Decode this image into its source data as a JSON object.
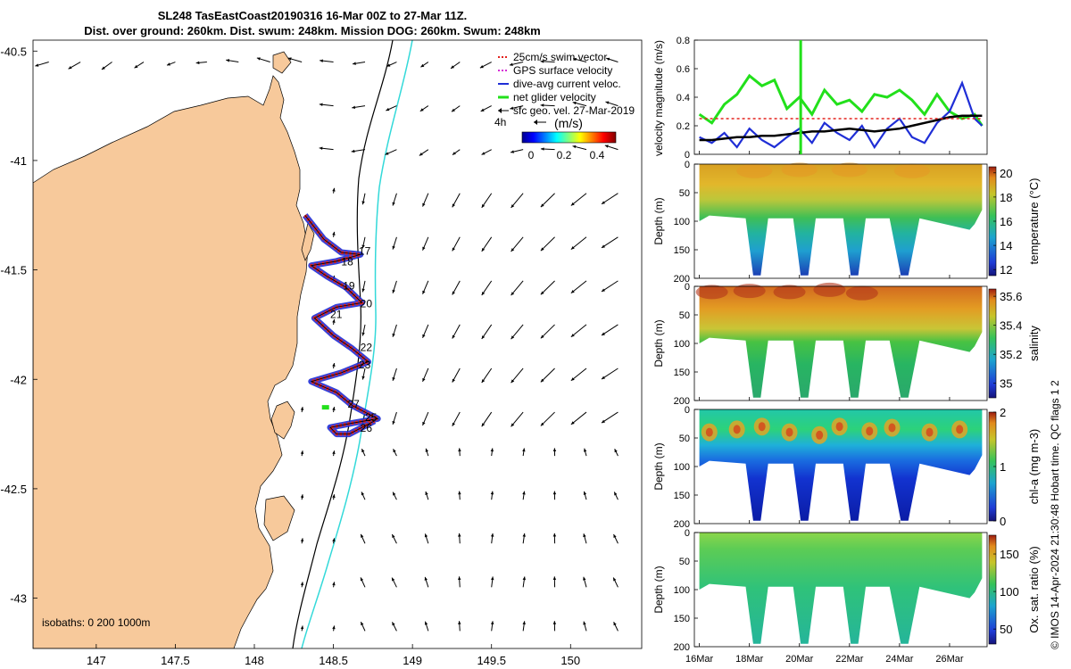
{
  "header": {
    "line1": "SL248 TasEastCoast20190316 16-Mar 00Z to 27-Mar 11Z.",
    "line2": "Dist. over ground: 260km. Dist. swum: 248km. Mission DOG: 260km. Swum: 248km"
  },
  "credit": "© IMOS 14-Apr-2024 21:30:48 Hobart time. QC flags 1  2",
  "colors": {
    "land": "#f7c99b",
    "track": "#e3231e",
    "dive_current": "#1f2ed6",
    "net_velocity": "#22e01b",
    "gps": "#d62cd6",
    "contour_200": "#000000",
    "contour_1000": "#33d9d9",
    "arrow": "#000000"
  },
  "chart_data": [
    {
      "id": "map",
      "type": "scatter",
      "xlabel": "",
      "ylabel": "",
      "xlim": [
        146.6,
        150.45
      ],
      "ylim": [
        -43.23,
        -40.45
      ],
      "xticks": [
        "147",
        "147.5",
        "148",
        "148.5",
        "149",
        "149.5",
        "150"
      ],
      "yticks": [
        "-40.5",
        "-41",
        "-41.5",
        "-42",
        "-42.5",
        "-43"
      ],
      "legend": {
        "position": "top-right",
        "entries": [
          "25cm/s swim vector",
          "GPS surface velocity",
          "dive-avg current veloc.",
          "net glider velocity",
          "sfc geo. vel. 27-Mar-2019"
        ]
      },
      "colorbar": {
        "label": "(m/s)",
        "scale_arrow_label": "4h",
        "ticks": [
          "0",
          "0.2",
          "0.4"
        ],
        "range": [
          0,
          0.5
        ]
      },
      "isobath_label": "isobaths: 0   200 1000m",
      "track_lon": [
        148.32,
        148.44,
        148.55,
        148.67,
        148.52,
        148.36,
        148.46,
        148.58,
        148.68,
        148.52,
        148.38,
        148.5,
        148.62,
        148.72,
        148.55,
        148.36,
        148.52,
        148.62,
        148.78,
        148.62,
        148.48,
        148.52,
        148.6,
        148.76
      ],
      "track_lat": [
        -41.25,
        -41.36,
        -41.42,
        -41.43,
        -41.46,
        -41.48,
        -41.53,
        -41.58,
        -41.65,
        -41.67,
        -41.72,
        -41.8,
        -41.86,
        -41.92,
        -41.97,
        -42.01,
        -42.06,
        -42.12,
        -42.18,
        -42.2,
        -42.22,
        -42.25,
        -42.25,
        -42.19
      ],
      "day_labels": [
        {
          "text": "17",
          "lon": 148.66,
          "lat": -41.43
        },
        {
          "text": "18",
          "lon": 148.55,
          "lat": -41.48
        },
        {
          "text": "19",
          "lon": 148.56,
          "lat": -41.59
        },
        {
          "text": "20",
          "lon": 148.67,
          "lat": -41.67
        },
        {
          "text": "21",
          "lon": 148.48,
          "lat": -41.72
        },
        {
          "text": "22",
          "lon": 148.67,
          "lat": -41.87
        },
        {
          "text": "23",
          "lon": 148.66,
          "lat": -41.95
        },
        {
          "text": "27",
          "lon": 148.59,
          "lat": -42.13
        },
        {
          "text": "25",
          "lon": 148.7,
          "lat": -42.19
        },
        {
          "text": "26",
          "lon": 148.67,
          "lat": -42.24
        }
      ]
    },
    {
      "id": "velocity",
      "type": "line",
      "ylabel": "velocity magnitude (m/s)",
      "xlim": [
        15.8,
        27.5
      ],
      "ylim": [
        0,
        0.8
      ],
      "yticks": [
        "0",
        "0.2",
        "0.4",
        "0.6",
        "0.8"
      ],
      "x": [
        16.0,
        16.5,
        17.0,
        17.5,
        18.0,
        18.5,
        19.0,
        19.5,
        20.0,
        20.5,
        21.0,
        21.5,
        22.0,
        22.5,
        23.0,
        23.5,
        24.0,
        24.5,
        25.0,
        25.5,
        26.0,
        26.5,
        27.0,
        27.3
      ],
      "series": [
        {
          "name": "net glider velocity",
          "values": [
            0.28,
            0.22,
            0.35,
            0.42,
            0.55,
            0.48,
            0.52,
            0.32,
            0.4,
            0.28,
            0.45,
            0.35,
            0.38,
            0.3,
            0.42,
            0.4,
            0.45,
            0.38,
            0.28,
            0.42,
            0.3,
            0.25,
            0.28,
            0.2
          ]
        },
        {
          "name": "dive-avg current veloc.",
          "values": [
            0.12,
            0.08,
            0.15,
            0.05,
            0.18,
            0.1,
            0.05,
            0.12,
            0.18,
            0.08,
            0.22,
            0.15,
            0.1,
            0.2,
            0.05,
            0.18,
            0.25,
            0.12,
            0.08,
            0.22,
            0.3,
            0.5,
            0.25,
            0.2
          ]
        },
        {
          "name": "sfc geo. vel.",
          "values": [
            0.1,
            0.1,
            0.11,
            0.12,
            0.12,
            0.13,
            0.13,
            0.14,
            0.15,
            0.16,
            0.16,
            0.17,
            0.18,
            0.17,
            0.16,
            0.17,
            0.18,
            0.2,
            0.22,
            0.24,
            0.26,
            0.27,
            0.27,
            0.27
          ]
        },
        {
          "name": "25cm/s swim vector",
          "values": [
            0.25,
            0.25,
            0.25,
            0.25,
            0.25,
            0.25,
            0.25,
            0.25,
            0.25,
            0.25,
            0.25,
            0.25,
            0.25,
            0.25,
            0.25,
            0.25,
            0.25,
            0.25,
            0.25,
            0.25,
            0.25,
            0.25,
            0.25,
            0.25
          ]
        }
      ]
    },
    {
      "id": "temperature",
      "type": "heatmap",
      "variable": "temperature",
      "units": "temperature (°C)",
      "ylabel": "Depth (m)",
      "ylim": [
        200,
        0
      ],
      "yticks": [
        "0",
        "50",
        "100",
        "150",
        "200"
      ],
      "clim": [
        11.5,
        20.5
      ],
      "cticks": [
        "12",
        "14",
        "16",
        "18",
        "20"
      ],
      "mixed_layer_depth_m": 90,
      "surface_value": 19.0,
      "deep_value": 12.0
    },
    {
      "id": "salinity",
      "type": "heatmap",
      "variable": "salinity",
      "units": "salinity",
      "ylabel": "Depth (m)",
      "ylim": [
        200,
        0
      ],
      "yticks": [
        "0",
        "50",
        "100",
        "150",
        "200"
      ],
      "clim": [
        34.9,
        35.65
      ],
      "cticks": [
        "35",
        "35.2",
        "35.4",
        "35.6"
      ],
      "mixed_layer_depth_m": 80,
      "surface_value": 35.5,
      "deep_value": 35.05
    },
    {
      "id": "chla",
      "type": "heatmap",
      "variable": "chl-a",
      "units": "chl-a (mg m-3)",
      "ylabel": "Depth (m)",
      "ylim": [
        200,
        0
      ],
      "yticks": [
        "0",
        "50",
        "100",
        "150",
        "200"
      ],
      "clim": [
        0,
        2
      ],
      "cticks": [
        "0",
        "1",
        "2"
      ],
      "mixed_layer_depth_m": 60,
      "surface_value": 1.3,
      "deep_value": 0.1
    },
    {
      "id": "oxygen",
      "type": "heatmap",
      "variable": "Ox. sat. ratio",
      "units": "Ox. sat. ratio (%)",
      "ylabel": "Depth (m)",
      "ylim": [
        200,
        0
      ],
      "yticks": [
        "0",
        "50",
        "100",
        "150",
        "200"
      ],
      "clim": [
        30,
        175
      ],
      "cticks": [
        "50",
        "100",
        "150"
      ],
      "mixed_layer_depth_m": 100,
      "surface_value": 102,
      "deep_value": 95
    },
    {
      "id": "time_axis",
      "type": "table",
      "xlim": [
        15.8,
        27.5
      ],
      "xticks": [
        "16Mar",
        "18Mar",
        "20Mar",
        "22Mar",
        "24Mar",
        "26Mar"
      ],
      "xtick_values": [
        16,
        18,
        20,
        22,
        24,
        26
      ],
      "dive_v_centers": [
        18.3,
        20.2,
        22.2,
        24.2
      ],
      "dive_v_max_depth": 195
    }
  ]
}
